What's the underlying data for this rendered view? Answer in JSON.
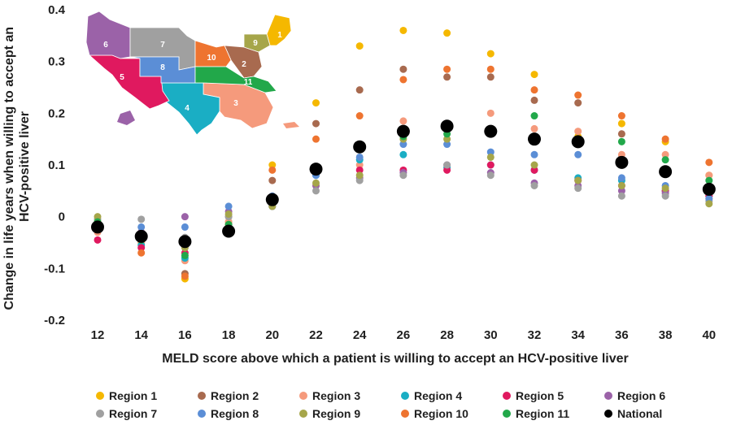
{
  "chart_data": {
    "type": "scatter",
    "xlabel": "MELD score above which a patient is willing to accept an HCV-positive liver",
    "ylabel": "Change in life years when willing to accept an HCV-positive liver",
    "categories": [
      12,
      14,
      16,
      18,
      20,
      22,
      24,
      26,
      28,
      30,
      32,
      34,
      36,
      38,
      40
    ],
    "ylim": [
      -0.2,
      0.4
    ],
    "yticks": [
      "-0.2",
      "-0.1",
      "0",
      "0.1",
      "0.2",
      "0.3",
      "0.4"
    ],
    "grid": false,
    "legend_position": "bottom",
    "series": [
      {
        "name": "Region 1",
        "color": "#f5b800",
        "values": [
          -0.01,
          -0.05,
          -0.12,
          -0.01,
          0.1,
          0.22,
          0.33,
          0.36,
          0.355,
          0.315,
          0.275,
          0.155,
          0.18,
          0.145,
          0.08
        ]
      },
      {
        "name": "Region 2",
        "color": "#a86a4f",
        "values": [
          -0.02,
          -0.03,
          -0.11,
          0.0,
          0.07,
          0.18,
          0.245,
          0.285,
          0.27,
          0.27,
          0.225,
          0.22,
          0.16,
          0.05,
          0.04
        ]
      },
      {
        "name": "Region 3",
        "color": "#f59a7c",
        "values": [
          -0.03,
          -0.05,
          -0.085,
          -0.01,
          0.03,
          0.06,
          0.1,
          0.185,
          0.18,
          0.2,
          0.17,
          0.165,
          0.12,
          0.12,
          0.08
        ]
      },
      {
        "name": "Region 4",
        "color": "#1aaec4",
        "values": [
          -0.025,
          -0.055,
          -0.08,
          -0.02,
          0.02,
          0.08,
          0.11,
          0.12,
          0.095,
          0.1,
          0.09,
          0.075,
          0.07,
          0.05,
          0.05
        ]
      },
      {
        "name": "Region 5",
        "color": "#e0195f",
        "values": [
          -0.045,
          -0.06,
          -0.07,
          -0.025,
          0.03,
          0.09,
          0.09,
          0.09,
          0.09,
          0.1,
          0.09,
          0.07,
          0.06,
          0.05,
          0.04
        ]
      },
      {
        "name": "Region 6",
        "color": "#9b62a8",
        "values": [
          -0.015,
          -0.03,
          0.0,
          0.01,
          0.02,
          0.06,
          0.075,
          0.085,
          0.1,
          0.085,
          0.065,
          0.06,
          0.05,
          0.045,
          0.035
        ]
      },
      {
        "name": "Region 7",
        "color": "#a0a0a0",
        "values": [
          -0.005,
          -0.005,
          -0.04,
          0.0,
          0.02,
          0.05,
          0.07,
          0.08,
          0.1,
          0.08,
          0.06,
          0.055,
          0.04,
          0.04,
          0.03
        ]
      },
      {
        "name": "Region 8",
        "color": "#5b8ed6",
        "values": [
          -0.02,
          -0.02,
          -0.02,
          0.02,
          0.04,
          0.08,
          0.115,
          0.14,
          0.14,
          0.125,
          0.12,
          0.12,
          0.075,
          0.06,
          0.035
        ]
      },
      {
        "name": "Region 9",
        "color": "#a6a64a",
        "values": [
          0.0,
          -0.04,
          -0.06,
          0.005,
          0.02,
          0.065,
          0.08,
          0.15,
          0.15,
          0.115,
          0.1,
          0.07,
          0.06,
          0.055,
          0.025
        ]
      },
      {
        "name": "Region 10",
        "color": "#ee7430",
        "values": [
          -0.02,
          -0.07,
          -0.115,
          -0.015,
          0.09,
          0.15,
          0.195,
          0.265,
          0.285,
          0.285,
          0.245,
          0.235,
          0.195,
          0.15,
          0.105
        ]
      },
      {
        "name": "Region 11",
        "color": "#22a84a",
        "values": [
          -0.01,
          -0.045,
          -0.075,
          -0.015,
          0.03,
          0.09,
          0.14,
          0.155,
          0.16,
          0.16,
          0.195,
          0.15,
          0.145,
          0.11,
          0.07
        ]
      },
      {
        "name": "National",
        "color": "#000000",
        "values": [
          -0.02,
          -0.038,
          -0.048,
          -0.028,
          0.033,
          0.092,
          0.135,
          0.165,
          0.175,
          0.165,
          0.15,
          0.145,
          0.105,
          0.087,
          0.053
        ]
      }
    ],
    "inset_map": {
      "regions": [
        {
          "label": "1",
          "color": "#f5b800"
        },
        {
          "label": "2",
          "color": "#a86a4f"
        },
        {
          "label": "3",
          "color": "#f59a7c"
        },
        {
          "label": "4",
          "color": "#1aaec4"
        },
        {
          "label": "5",
          "color": "#e0195f"
        },
        {
          "label": "6",
          "color": "#9b62a8"
        },
        {
          "label": "7",
          "color": "#a0a0a0"
        },
        {
          "label": "8",
          "color": "#5b8ed6"
        },
        {
          "label": "9",
          "color": "#a6a64a"
        },
        {
          "label": "10",
          "color": "#ee7430"
        },
        {
          "label": "11",
          "color": "#22a84a"
        }
      ]
    }
  }
}
